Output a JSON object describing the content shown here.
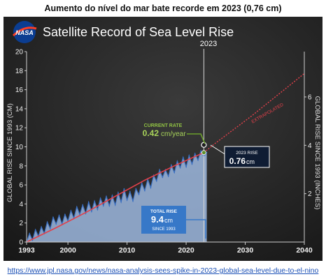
{
  "caption": "Aumento do nível do mar bate recorde em 2023 (0,76 cm)",
  "link": "https://www.jpl.nasa.gov/news/nasa-analysis-sees-spike-in-2023-global-sea-level-due-to-el-nino",
  "logo_text": "NASA",
  "colors": {
    "background": "#1f1f1f",
    "fill": "#9db9df",
    "data_line": "#3a6fc1",
    "trend": "#e2404a",
    "extrapolated": "#e2404a",
    "callout_rate": "#5f8f2a",
    "total_box": "#3778c8",
    "record_box": "#0f1c33"
  },
  "chart_data": {
    "type": "area",
    "title": "Satellite Record of Sea Level Rise",
    "xlabel": "",
    "ylabel_left": "GLOBAL RISE SINCE 1993 (CM)",
    "ylabel_right": "GLOBAL RISE SINCE 1993 (INCHES)",
    "xlim": [
      1993,
      2040
    ],
    "ylim": [
      0,
      20
    ],
    "x_ticks": [
      1993,
      2000,
      2010,
      2020,
      2030,
      2040
    ],
    "y_ticks": [
      0,
      2,
      4,
      6,
      8,
      10,
      12,
      14,
      16,
      18,
      20
    ],
    "y_right_ticks": [
      2,
      4,
      6
    ],
    "grid": false,
    "marker_year": "2023",
    "series": [
      {
        "name": "",
        "x": [
          1993,
          1993.5,
          1994,
          1994.5,
          1995,
          1995.5,
          1996,
          1996.5,
          1997,
          1997.5,
          1998,
          1998.5,
          1999,
          1999.5,
          2000,
          2000.5,
          2001,
          2001.5,
          2002,
          2002.5,
          2003,
          2003.5,
          2004,
          2004.5,
          2005,
          2005.5,
          2006,
          2006.5,
          2007,
          2007.5,
          2008,
          2008.5,
          2009,
          2009.5,
          2010,
          2010.5,
          2011,
          2011.5,
          2012,
          2012.5,
          2013,
          2013.5,
          2014,
          2014.5,
          2015,
          2015.5,
          2016,
          2016.5,
          2017,
          2017.5,
          2018,
          2018.5,
          2019,
          2019.5,
          2020,
          2020.5,
          2021,
          2021.5,
          2022,
          2022.5,
          2023,
          2023.5
        ],
        "values": [
          0.0,
          0.9,
          0.2,
          1.3,
          0.6,
          1.6,
          0.9,
          2.1,
          1.4,
          2.6,
          1.9,
          2.8,
          1.9,
          2.9,
          2.2,
          3.3,
          2.5,
          3.7,
          2.9,
          3.9,
          3.0,
          4.2,
          3.2,
          4.3,
          3.4,
          4.6,
          3.8,
          4.8,
          3.8,
          4.9,
          3.9,
          5.2,
          4.2,
          5.6,
          4.4,
          5.3,
          4.3,
          5.6,
          5.0,
          6.2,
          5.4,
          6.6,
          5.7,
          7.0,
          6.4,
          7.6,
          6.8,
          7.6,
          6.9,
          8.1,
          7.3,
          8.5,
          7.8,
          8.9,
          7.9,
          9.1,
          8.2,
          9.3,
          8.6,
          9.6,
          9.0,
          9.4
        ]
      },
      {
        "name": "",
        "type": "trend",
        "x": [
          1993,
          1998,
          2003,
          2008,
          2013,
          2018,
          2023
        ],
        "values": [
          0.0,
          1.5,
          3.1,
          4.8,
          6.5,
          8.0,
          9.4
        ]
      },
      {
        "name": "EXTRAPOLATED",
        "type": "extrapolated",
        "x": [
          2023,
          2025,
          2028,
          2031,
          2034,
          2037,
          2040
        ],
        "values": [
          9.4,
          10.4,
          11.8,
          13.2,
          14.7,
          16.2,
          17.7
        ]
      }
    ],
    "annotations": [
      {
        "id": "current_rate",
        "title": "CURRENT RATE",
        "value": "0.42",
        "unit": "cm/year",
        "x": 2023,
        "y": 9.4
      },
      {
        "id": "record_2023",
        "title": "2023 RISE",
        "value": "0.76",
        "unit": "cm",
        "x": 2023,
        "y": 10.2
      },
      {
        "id": "total_rise",
        "title": "TOTAL RISE",
        "value": "9.4",
        "unit": "cm",
        "subtitle": "SINCE 1993",
        "x": 2023,
        "y": 2.0
      }
    ]
  }
}
